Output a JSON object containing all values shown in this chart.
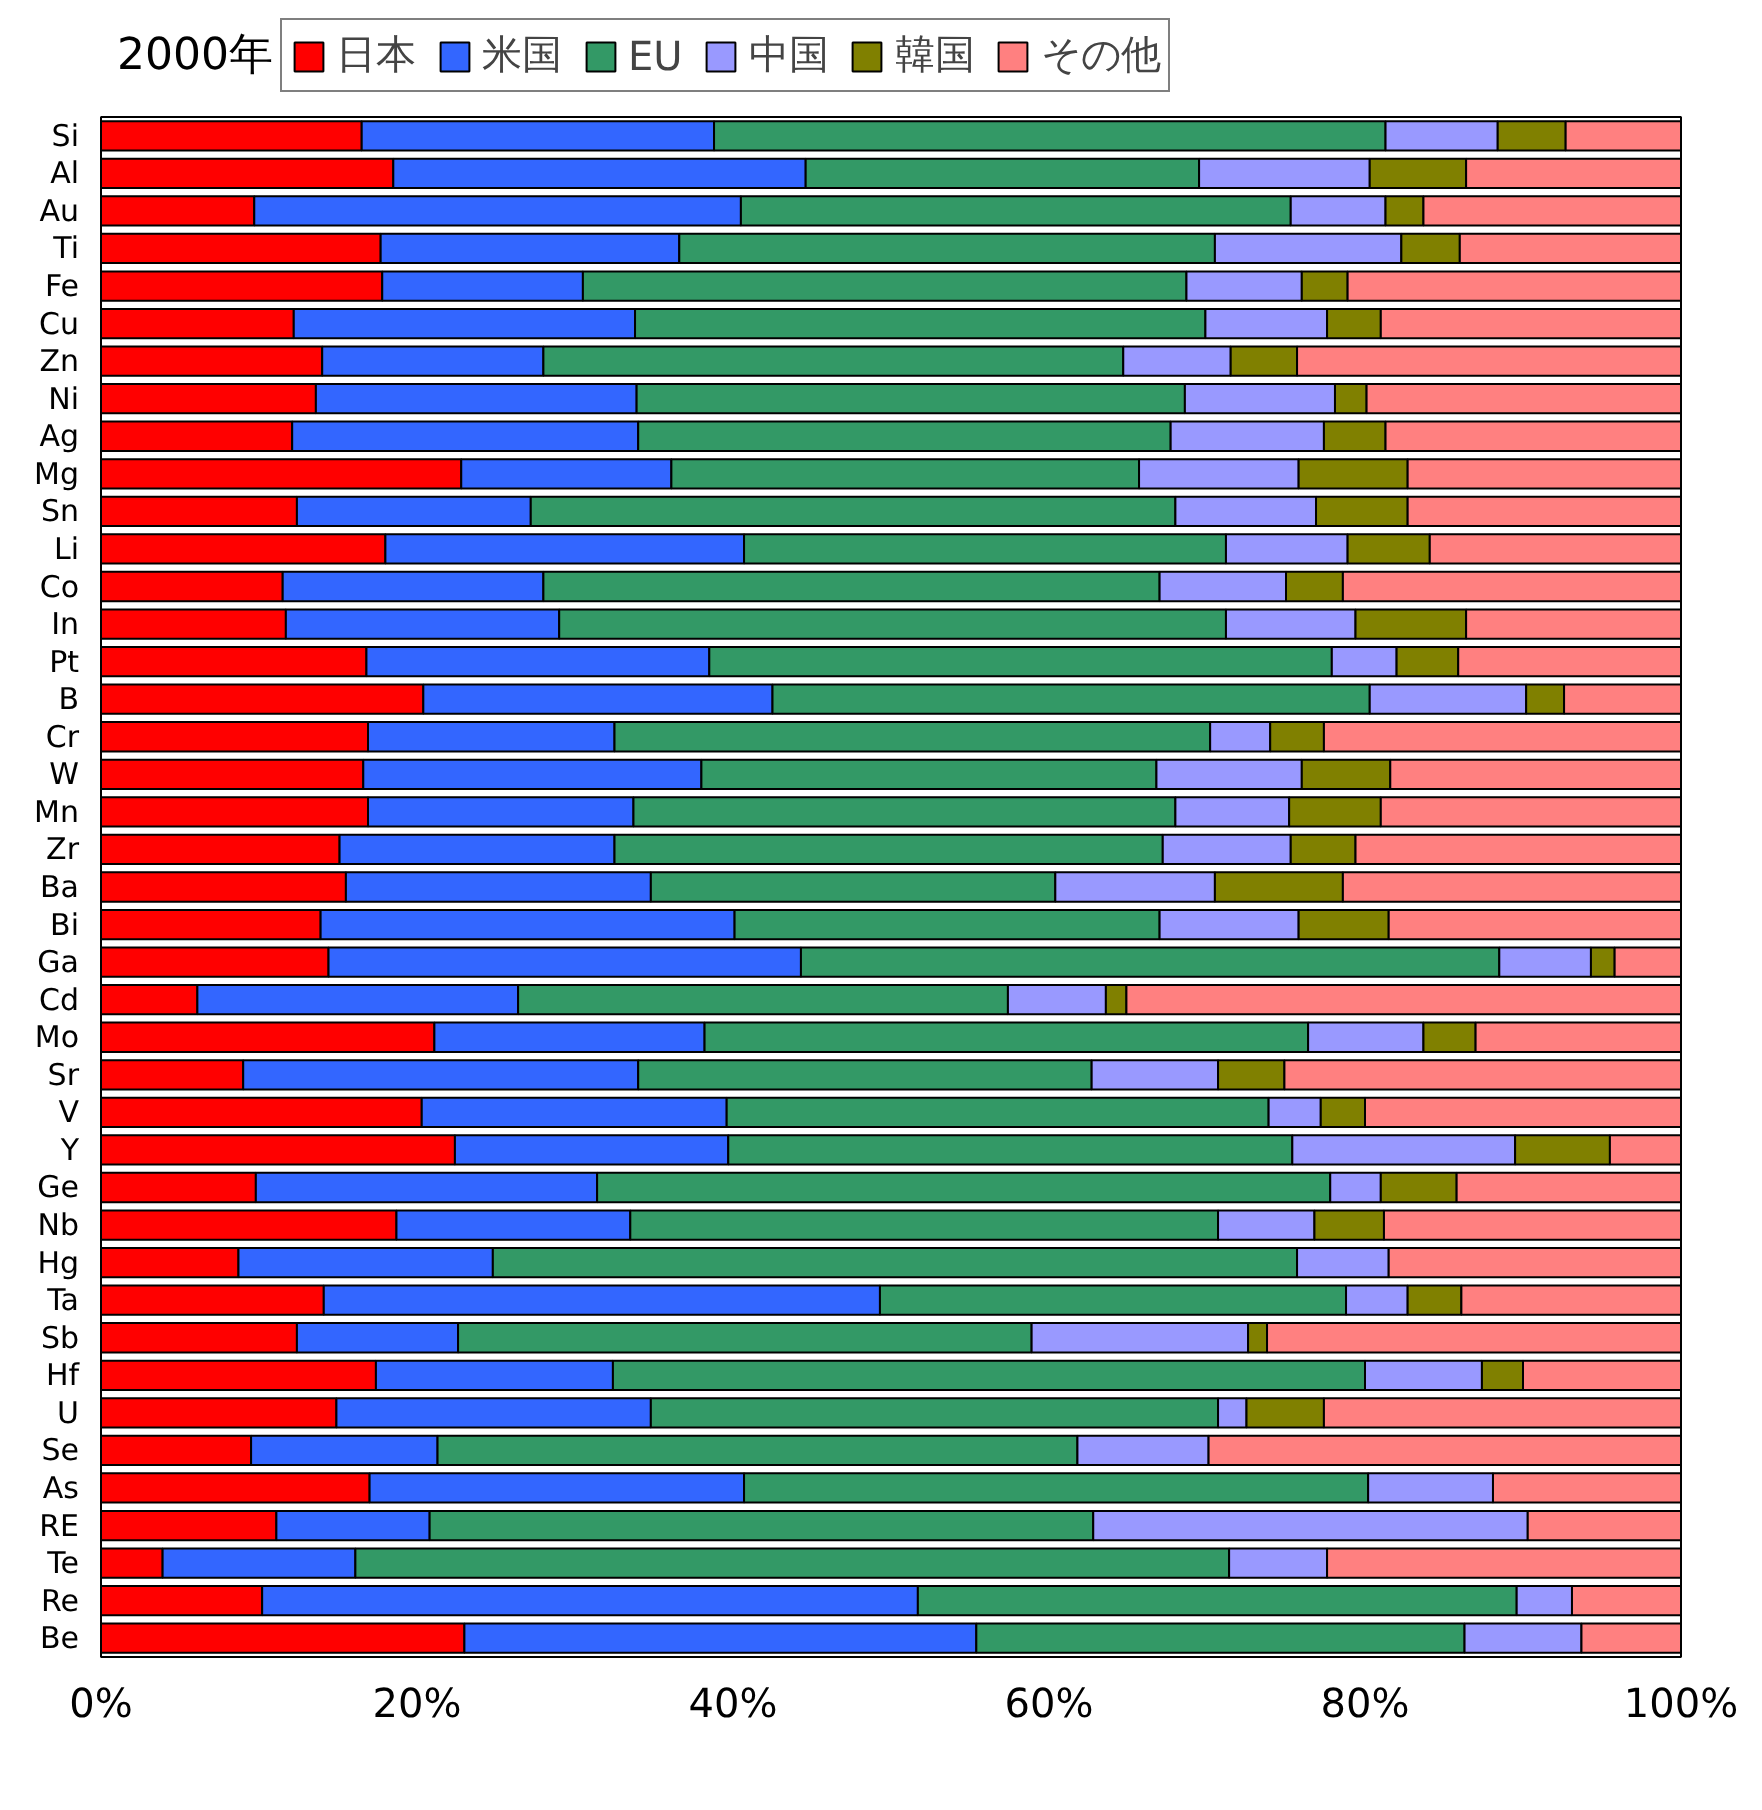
{
  "chart_data": {
    "type": "bar",
    "orientation": "horizontal",
    "stacked": true,
    "title": "2000年",
    "categories": [
      "Si",
      "Al",
      "Au",
      "Ti",
      "Fe",
      "Cu",
      "Zn",
      "Ni",
      "Ag",
      "Mg",
      "Sn",
      "Li",
      "Co",
      "In",
      "Pt",
      "B",
      "Cr",
      "W",
      "Mn",
      "Zr",
      "Ba",
      "Bi",
      "Ga",
      "Cd",
      "Mo",
      "Sr",
      "V",
      "Y",
      "Ge",
      "Nb",
      "Hg",
      "Ta",
      "Sb",
      "Hf",
      "U",
      "Se",
      "As",
      "RE",
      "Te",
      "Re",
      "Be"
    ],
    "series": [
      {
        "name": "日本",
        "color": "#ff0000",
        "values": [
          16.5,
          18.5,
          9.7,
          17.7,
          17.8,
          12.2,
          14.0,
          13.6,
          12.1,
          22.8,
          12.4,
          18.0,
          11.5,
          11.7,
          16.8,
          20.4,
          16.9,
          16.6,
          16.9,
          15.1,
          15.5,
          13.9,
          14.4,
          6.1,
          21.1,
          9.0,
          20.3,
          22.4,
          9.8,
          18.7,
          8.7,
          14.1,
          12.4,
          17.4,
          14.9,
          9.5,
          17.0,
          11.1,
          3.9,
          10.2,
          23.0
        ]
      },
      {
        "name": "米国",
        "color": "#3366ff",
        "values": [
          22.3,
          26.1,
          30.8,
          18.9,
          12.7,
          21.6,
          14.0,
          20.3,
          21.9,
          13.3,
          14.8,
          22.7,
          16.5,
          17.3,
          21.7,
          22.1,
          15.6,
          21.4,
          16.8,
          17.4,
          19.3,
          26.2,
          29.9,
          20.3,
          17.1,
          25.0,
          19.3,
          17.3,
          21.6,
          14.8,
          16.1,
          35.2,
          10.2,
          15.0,
          19.9,
          11.8,
          23.7,
          9.7,
          12.2,
          41.5,
          32.4
        ]
      },
      {
        "name": "EU",
        "color": "#339966",
        "values": [
          42.5,
          24.9,
          34.8,
          33.9,
          38.2,
          36.1,
          36.7,
          34.7,
          33.7,
          29.6,
          40.8,
          30.5,
          39.0,
          42.2,
          39.4,
          37.8,
          37.7,
          28.8,
          34.3,
          34.7,
          25.6,
          26.9,
          44.2,
          31.0,
          38.2,
          28.7,
          34.3,
          35.7,
          46.4,
          37.2,
          50.9,
          29.5,
          36.3,
          47.6,
          35.9,
          40.5,
          39.5,
          42.0,
          55.3,
          37.9,
          30.9
        ]
      },
      {
        "name": "中国",
        "color": "#9999ff",
        "values": [
          7.1,
          10.8,
          6.0,
          11.8,
          7.3,
          7.7,
          6.8,
          9.5,
          9.7,
          10.1,
          8.9,
          7.7,
          8.0,
          8.2,
          4.1,
          9.9,
          3.8,
          9.2,
          7.2,
          8.1,
          10.1,
          8.8,
          5.8,
          6.2,
          7.3,
          8.0,
          3.3,
          14.1,
          3.2,
          6.1,
          5.8,
          3.9,
          13.7,
          7.4,
          1.8,
          8.3,
          7.9,
          27.5,
          6.2,
          3.5,
          7.4
        ]
      },
      {
        "name": "韓国",
        "color": "#808000",
        "values": [
          4.3,
          6.1,
          2.4,
          3.7,
          2.9,
          3.4,
          4.2,
          2.0,
          3.9,
          6.9,
          5.8,
          5.2,
          3.6,
          7.0,
          3.9,
          2.4,
          3.4,
          5.6,
          5.8,
          4.1,
          8.1,
          5.7,
          1.5,
          1.3,
          3.3,
          4.2,
          2.8,
          6.0,
          4.8,
          4.4,
          null,
          3.4,
          1.2,
          2.6,
          4.9,
          null,
          null,
          null,
          null,
          null,
          null
        ]
      },
      {
        "name": "その他",
        "color": "#ff8080",
        "values": [
          7.3,
          13.6,
          16.3,
          14.0,
          21.1,
          19.0,
          24.3,
          19.9,
          18.7,
          17.3,
          17.3,
          15.9,
          21.4,
          13.6,
          14.1,
          7.4,
          22.6,
          18.4,
          19.0,
          20.6,
          21.4,
          18.5,
          4.2,
          35.1,
          13.0,
          25.1,
          20.0,
          4.5,
          14.2,
          18.8,
          18.5,
          13.9,
          26.2,
          10.0,
          22.6,
          29.9,
          11.9,
          9.7,
          22.4,
          6.9,
          6.3
        ]
      }
    ],
    "xlim": [
      0,
      100
    ],
    "xticks": [
      {
        "value": 0,
        "label": "0%"
      },
      {
        "value": 20,
        "label": "20%"
      },
      {
        "value": 40,
        "label": "40%"
      },
      {
        "value": 60,
        "label": "60%"
      },
      {
        "value": 80,
        "label": "80%"
      },
      {
        "value": 100,
        "label": "100%"
      }
    ],
    "grid": false,
    "legend": "top"
  }
}
